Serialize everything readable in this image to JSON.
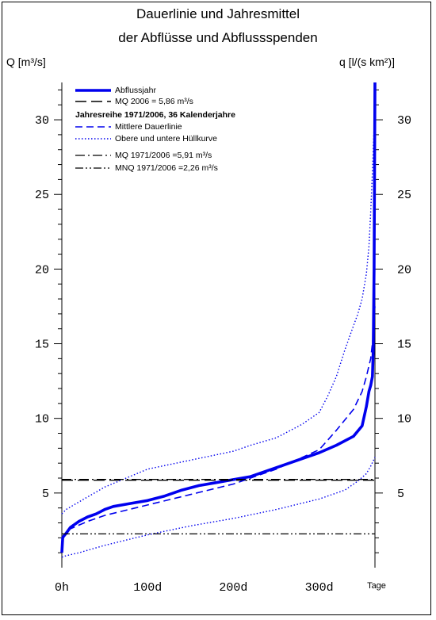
{
  "chart_data": {
    "type": "line",
    "title": "Dauerlinie und Jahresmittel",
    "subtitle": "der Abflüsse und Abflussspenden",
    "ylabel_left": "Q [m³/s]",
    "ylabel_right": "q [l/(s km²)]",
    "x_unit_label": "Tage",
    "xlim": [
      0,
      365
    ],
    "ylim": [
      0,
      32.5
    ],
    "x_ticks": [
      0,
      100,
      200,
      300
    ],
    "x_tick_labels": [
      "0h",
      "100d",
      "200d",
      "300d"
    ],
    "y_ticks": [
      5,
      10,
      15,
      20,
      25,
      30
    ],
    "y_tick_labels": [
      "5",
      "10",
      "15",
      "20",
      "25",
      "30"
    ],
    "y_ticks_right": [
      5,
      10,
      15,
      20,
      25,
      30
    ],
    "y_tick_labels_right": [
      "5",
      "10",
      "15",
      "20",
      "25",
      "30"
    ],
    "grid": false,
    "legend_placement": "top-left",
    "legend_group_heading": "Jahresreihe 1971/2006, 36 Kalenderjahre",
    "colors": {
      "blue": "#0000ee",
      "black": "#000000"
    },
    "series": [
      {
        "name": "Abflussjahr",
        "style": "solid-thick",
        "color": "#0000ee",
        "x": [
          0,
          1,
          2,
          5,
          10,
          20,
          30,
          40,
          50,
          60,
          80,
          100,
          120,
          140,
          160,
          180,
          200,
          220,
          240,
          260,
          280,
          300,
          320,
          340,
          350,
          355,
          358,
          360,
          362,
          363,
          364,
          365
        ],
        "y": [
          1.0,
          2.0,
          2.1,
          2.3,
          2.7,
          3.1,
          3.4,
          3.6,
          3.9,
          4.1,
          4.3,
          4.5,
          4.8,
          5.2,
          5.5,
          5.7,
          5.9,
          6.1,
          6.5,
          6.9,
          7.3,
          7.7,
          8.2,
          8.8,
          9.5,
          10.8,
          11.8,
          12.2,
          12.8,
          14.5,
          20.0,
          32.5
        ]
      },
      {
        "name": "MQ  2006 = 5,86 m³/s",
        "style": "dashed-long",
        "color": "#000000",
        "x": [
          0,
          365
        ],
        "y": [
          5.86,
          5.86
        ]
      },
      {
        "name": "Mittlere Dauerlinie",
        "style": "dashed",
        "color": "#0000ee",
        "x": [
          0,
          5,
          10,
          30,
          50,
          100,
          150,
          200,
          250,
          300,
          320,
          340,
          350,
          355,
          360,
          363,
          365
        ],
        "y": [
          1.9,
          2.3,
          2.6,
          3.1,
          3.5,
          4.2,
          4.9,
          5.6,
          6.6,
          7.9,
          9.2,
          10.6,
          11.8,
          12.8,
          14.0,
          15.5,
          17.5
        ]
      },
      {
        "name": "Obere und untere Hüllkurve",
        "style": "dotted",
        "color": "#0000ee",
        "x": [
          0,
          5,
          20,
          50,
          100,
          150,
          200,
          220,
          250,
          280,
          300,
          310,
          320,
          330,
          340,
          345,
          350,
          355,
          358,
          360,
          362,
          364,
          365
        ],
        "y": [
          3.6,
          3.9,
          4.4,
          5.4,
          6.6,
          7.2,
          7.8,
          8.2,
          8.7,
          9.6,
          10.4,
          11.5,
          12.8,
          14.6,
          16.2,
          17.0,
          18.0,
          19.7,
          21.5,
          23.8,
          26.5,
          29.5,
          32.5
        ]
      },
      {
        "name": "Obere und untere Hüllkurve (untere)",
        "style": "dotted",
        "color": "#0000ee",
        "x": [
          0,
          5,
          20,
          50,
          100,
          150,
          200,
          250,
          300,
          330,
          345,
          355,
          360,
          365
        ],
        "y": [
          0.7,
          0.8,
          1.0,
          1.5,
          2.2,
          2.8,
          3.3,
          3.9,
          4.6,
          5.2,
          5.8,
          6.3,
          6.8,
          7.4
        ]
      },
      {
        "name": "MQ    1971/2006     =5,91 m³/s",
        "style": "dashdot",
        "color": "#000000",
        "x": [
          0,
          365
        ],
        "y": [
          5.91,
          5.91
        ]
      },
      {
        "name": "MNQ  1971/2006     =2,26 m³/s",
        "style": "dashdotdot",
        "color": "#000000",
        "x": [
          0,
          365
        ],
        "y": [
          2.26,
          2.26
        ]
      }
    ]
  }
}
